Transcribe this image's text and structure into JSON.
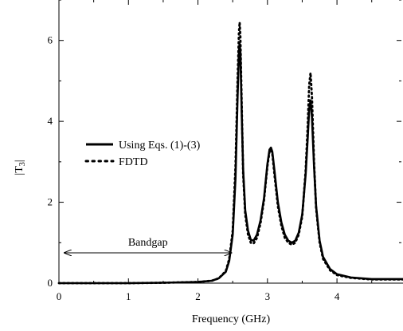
{
  "chart_data": {
    "type": "line",
    "title": "",
    "xlabel": "Frequency (GHz)",
    "ylabel_main": "|T",
    "ylabel_sub": "3",
    "ylabel_end": "|",
    "xlim": [
      0,
      4.95
    ],
    "ylim": [
      0,
      7
    ],
    "xticks": [
      0,
      1,
      2,
      3,
      4
    ],
    "xtick_labels": [
      "0",
      "1",
      "2",
      "3",
      "4"
    ],
    "yticks": [
      0,
      2,
      4,
      6
    ],
    "ytick_labels": [
      "0",
      "2",
      "4",
      "6"
    ],
    "grid": false,
    "legend_position": "left-middle",
    "series": [
      {
        "name": "Using Eqs. (1)-(3)",
        "style": "solid",
        "color": "#000000",
        "x": [
          0,
          1.0,
          1.5,
          2.0,
          2.2,
          2.3,
          2.4,
          2.45,
          2.5,
          2.54,
          2.57,
          2.59,
          2.6,
          2.61,
          2.63,
          2.65,
          2.68,
          2.72,
          2.76,
          2.8,
          2.85,
          2.9,
          2.95,
          3.0,
          3.03,
          3.05,
          3.07,
          3.1,
          3.15,
          3.2,
          3.25,
          3.3,
          3.35,
          3.4,
          3.45,
          3.5,
          3.55,
          3.58,
          3.6,
          3.62,
          3.64,
          3.67,
          3.7,
          3.75,
          3.8,
          3.9,
          4.0,
          4.2,
          4.5,
          4.95
        ],
        "y": [
          0.0,
          0.0,
          0.01,
          0.03,
          0.06,
          0.12,
          0.28,
          0.55,
          1.2,
          2.6,
          4.6,
          5.7,
          5.92,
          5.7,
          4.2,
          2.8,
          1.8,
          1.3,
          1.07,
          1.05,
          1.2,
          1.55,
          2.1,
          2.95,
          3.3,
          3.35,
          3.25,
          2.8,
          2.0,
          1.5,
          1.2,
          1.05,
          1.0,
          1.05,
          1.25,
          1.7,
          2.7,
          3.6,
          4.3,
          4.52,
          4.1,
          2.9,
          1.9,
          1.05,
          0.65,
          0.35,
          0.22,
          0.14,
          0.1,
          0.1
        ]
      },
      {
        "name": "FDTD",
        "style": "dotted",
        "color": "#000000",
        "x": [
          0,
          1.0,
          1.5,
          2.0,
          2.2,
          2.3,
          2.4,
          2.45,
          2.5,
          2.54,
          2.57,
          2.59,
          2.6,
          2.61,
          2.63,
          2.65,
          2.68,
          2.72,
          2.76,
          2.8,
          2.85,
          2.9,
          2.95,
          3.0,
          3.03,
          3.05,
          3.07,
          3.1,
          3.15,
          3.2,
          3.25,
          3.3,
          3.35,
          3.4,
          3.45,
          3.5,
          3.55,
          3.58,
          3.6,
          3.62,
          3.64,
          3.67,
          3.7,
          3.75,
          3.8,
          3.9,
          4.0,
          4.2,
          4.5,
          4.95
        ],
        "y": [
          0.0,
          0.0,
          0.01,
          0.03,
          0.06,
          0.12,
          0.3,
          0.6,
          1.3,
          2.9,
          5.0,
          6.2,
          6.45,
          6.1,
          4.4,
          2.7,
          1.7,
          1.2,
          1.0,
          0.98,
          1.12,
          1.48,
          2.05,
          2.9,
          3.25,
          3.3,
          3.2,
          2.7,
          1.9,
          1.42,
          1.12,
          1.0,
          0.95,
          1.0,
          1.2,
          1.65,
          2.8,
          3.9,
          4.9,
          5.2,
          4.6,
          3.0,
          1.85,
          1.0,
          0.6,
          0.32,
          0.2,
          0.13,
          0.09,
          0.09
        ]
      }
    ],
    "annotations": [
      {
        "text": "Bandgap",
        "type": "double-arrow",
        "x_start": 0.08,
        "x_end": 2.48,
        "y": 0.75
      }
    ]
  }
}
